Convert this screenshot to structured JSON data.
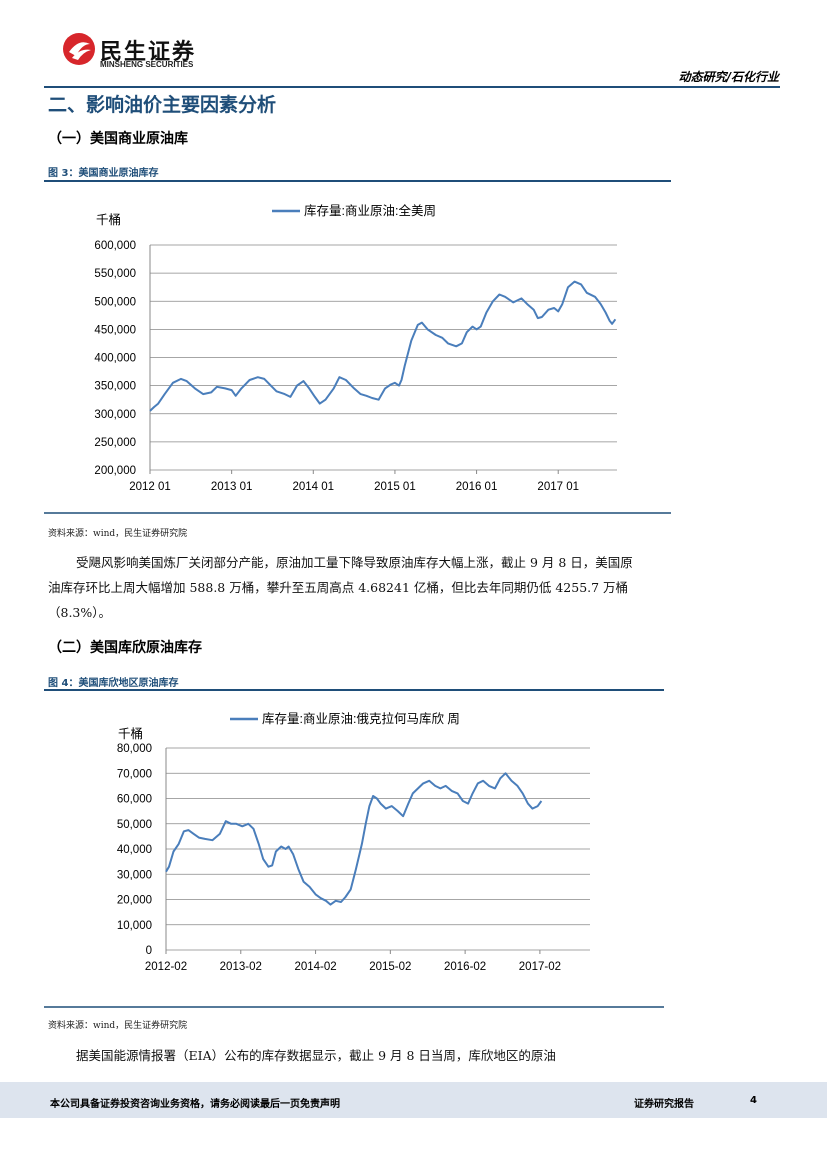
{
  "header": {
    "logo_cn": "民生证券",
    "logo_en": "MINSHENG SECURITIES",
    "category": "动态研究/石化行业",
    "brand_color": "#d7262b"
  },
  "section_title": "二、影响油价主要因素分析",
  "sub1": "（一）美国商业原油库",
  "fig3": {
    "caption": "图 3：美国商业原油库存",
    "source": "资料来源：wind，民生证券研究院"
  },
  "para1": "受飓风影响美国炼厂关闭部分产能，原油加工量下降导致原油库存大幅上涨，截止 9 月 8 日，美国原油库存环比上周大幅增加 588.8 万桶，攀升至五周高点 4.68241 亿桶，但比去年同期仍低 4255.7 万桶（8.3%）。",
  "sub2": "（二）美国库欣原油库存",
  "fig4": {
    "caption": "图 4：美国库欣地区原油库存",
    "source": "资料来源：wind，民生证券研究院"
  },
  "para2": "据美国能源情报署（EIA）公布的库存数据显示，截止 9 月 8 日当周，库欣地区的原油",
  "footer": {
    "disclaimer": "本公司具备证券投资咨询业务资格，请务必阅读最后一页免责声明",
    "report_type": "证券研究报告",
    "page": "4"
  },
  "chart_data": [
    {
      "type": "line",
      "unit_label": "千桶",
      "series": [
        {
          "name": "库存量:商业原油:全美周",
          "color": "#4a7ebb"
        }
      ],
      "x_ticks": [
        "2012 01",
        "2013 01",
        "2014 01",
        "2015 01",
        "2016 01",
        "2017 01"
      ],
      "y_ticks": [
        "200,000",
        "250,000",
        "300,000",
        "350,000",
        "400,000",
        "450,000",
        "500,000",
        "550,000",
        "600,000"
      ],
      "ylim": [
        200000,
        600000
      ],
      "x_range": [
        2012.0,
        2017.72
      ],
      "points": [
        [
          2012.0,
          305000
        ],
        [
          2012.05,
          312000
        ],
        [
          2012.1,
          318000
        ],
        [
          2012.18,
          335000
        ],
        [
          2012.28,
          355000
        ],
        [
          2012.38,
          362000
        ],
        [
          2012.45,
          358000
        ],
        [
          2012.55,
          345000
        ],
        [
          2012.65,
          335000
        ],
        [
          2012.75,
          338000
        ],
        [
          2012.82,
          348000
        ],
        [
          2012.92,
          345000
        ],
        [
          2013.0,
          342000
        ],
        [
          2013.05,
          332000
        ],
        [
          2013.12,
          345000
        ],
        [
          2013.22,
          360000
        ],
        [
          2013.32,
          365000
        ],
        [
          2013.4,
          362000
        ],
        [
          2013.48,
          350000
        ],
        [
          2013.55,
          340000
        ],
        [
          2013.65,
          335000
        ],
        [
          2013.72,
          330000
        ],
        [
          2013.8,
          350000
        ],
        [
          2013.88,
          358000
        ],
        [
          2013.95,
          345000
        ],
        [
          2014.02,
          330000
        ],
        [
          2014.08,
          318000
        ],
        [
          2014.15,
          325000
        ],
        [
          2014.25,
          345000
        ],
        [
          2014.32,
          365000
        ],
        [
          2014.4,
          360000
        ],
        [
          2014.5,
          345000
        ],
        [
          2014.58,
          335000
        ],
        [
          2014.65,
          332000
        ],
        [
          2014.72,
          328000
        ],
        [
          2014.8,
          325000
        ],
        [
          2014.88,
          345000
        ],
        [
          2014.95,
          352000
        ],
        [
          2015.0,
          355000
        ],
        [
          2015.05,
          350000
        ],
        [
          2015.08,
          360000
        ],
        [
          2015.12,
          385000
        ],
        [
          2015.2,
          430000
        ],
        [
          2015.28,
          458000
        ],
        [
          2015.33,
          462000
        ],
        [
          2015.4,
          450000
        ],
        [
          2015.5,
          440000
        ],
        [
          2015.58,
          435000
        ],
        [
          2015.65,
          425000
        ],
        [
          2015.75,
          420000
        ],
        [
          2015.82,
          425000
        ],
        [
          2015.88,
          445000
        ],
        [
          2015.95,
          455000
        ],
        [
          2016.0,
          450000
        ],
        [
          2016.05,
          455000
        ],
        [
          2016.12,
          480000
        ],
        [
          2016.2,
          500000
        ],
        [
          2016.28,
          512000
        ],
        [
          2016.35,
          508000
        ],
        [
          2016.45,
          498000
        ],
        [
          2016.55,
          505000
        ],
        [
          2016.62,
          495000
        ],
        [
          2016.7,
          485000
        ],
        [
          2016.75,
          470000
        ],
        [
          2016.8,
          472000
        ],
        [
          2016.88,
          485000
        ],
        [
          2016.95,
          488000
        ],
        [
          2017.0,
          482000
        ],
        [
          2017.05,
          495000
        ],
        [
          2017.12,
          525000
        ],
        [
          2017.2,
          535000
        ],
        [
          2017.28,
          530000
        ],
        [
          2017.35,
          515000
        ],
        [
          2017.45,
          508000
        ],
        [
          2017.52,
          495000
        ],
        [
          2017.58,
          480000
        ],
        [
          2017.63,
          465000
        ],
        [
          2017.66,
          460000
        ],
        [
          2017.7,
          468000
        ]
      ]
    },
    {
      "type": "line",
      "unit_label": "千桶",
      "series": [
        {
          "name": "库存量:商业原油:俄克拉何马库欣 周",
          "color": "#4a7ebb"
        }
      ],
      "x_ticks": [
        "2012-02",
        "2013-02",
        "2014-02",
        "2015-02",
        "2016-02",
        "2017-02"
      ],
      "y_ticks": [
        "0",
        "10,000",
        "20,000",
        "30,000",
        "40,000",
        "50,000",
        "60,000",
        "70,000",
        "80,000"
      ],
      "ylim": [
        0,
        80000
      ],
      "x_range": [
        2012.08,
        2017.75
      ],
      "points": [
        [
          2012.08,
          31000
        ],
        [
          2012.12,
          33000
        ],
        [
          2012.18,
          39000
        ],
        [
          2012.25,
          42000
        ],
        [
          2012.32,
          47000
        ],
        [
          2012.38,
          47500
        ],
        [
          2012.45,
          46000
        ],
        [
          2012.52,
          44500
        ],
        [
          2012.6,
          44000
        ],
        [
          2012.7,
          43500
        ],
        [
          2012.8,
          46000
        ],
        [
          2012.88,
          51000
        ],
        [
          2012.95,
          50000
        ],
        [
          2013.02,
          50000
        ],
        [
          2013.1,
          49000
        ],
        [
          2013.18,
          50000
        ],
        [
          2013.25,
          48000
        ],
        [
          2013.32,
          42000
        ],
        [
          2013.38,
          36000
        ],
        [
          2013.45,
          33000
        ],
        [
          2013.5,
          33500
        ],
        [
          2013.55,
          39000
        ],
        [
          2013.62,
          41000
        ],
        [
          2013.68,
          40000
        ],
        [
          2013.72,
          41000
        ],
        [
          2013.78,
          38000
        ],
        [
          2013.85,
          32000
        ],
        [
          2013.92,
          27000
        ],
        [
          2014.0,
          25000
        ],
        [
          2014.08,
          22000
        ],
        [
          2014.15,
          20500
        ],
        [
          2014.22,
          19500
        ],
        [
          2014.28,
          18000
        ],
        [
          2014.35,
          19500
        ],
        [
          2014.42,
          19000
        ],
        [
          2014.48,
          21000
        ],
        [
          2014.55,
          24000
        ],
        [
          2014.62,
          32000
        ],
        [
          2014.7,
          42000
        ],
        [
          2014.75,
          50000
        ],
        [
          2014.8,
          57000
        ],
        [
          2014.85,
          61000
        ],
        [
          2014.9,
          60000
        ],
        [
          2014.95,
          58000
        ],
        [
          2015.02,
          56000
        ],
        [
          2015.1,
          57000
        ],
        [
          2015.18,
          55000
        ],
        [
          2015.25,
          53000
        ],
        [
          2015.32,
          58000
        ],
        [
          2015.38,
          62000
        ],
        [
          2015.45,
          64000
        ],
        [
          2015.52,
          66000
        ],
        [
          2015.6,
          67000
        ],
        [
          2015.68,
          65000
        ],
        [
          2015.75,
          64000
        ],
        [
          2015.82,
          65000
        ],
        [
          2015.9,
          63000
        ],
        [
          2015.98,
          62000
        ],
        [
          2016.05,
          59000
        ],
        [
          2016.12,
          58000
        ],
        [
          2016.18,
          62000
        ],
        [
          2016.25,
          66000
        ],
        [
          2016.32,
          67000
        ],
        [
          2016.4,
          65000
        ],
        [
          2016.48,
          64000
        ],
        [
          2016.55,
          68000
        ],
        [
          2016.62,
          70000
        ],
        [
          2016.7,
          67000
        ],
        [
          2016.78,
          65000
        ],
        [
          2016.85,
          62000
        ],
        [
          2016.92,
          58000
        ],
        [
          2016.98,
          56000
        ],
        [
          2017.05,
          57000
        ],
        [
          2017.1,
          59000
        ]
      ]
    }
  ]
}
